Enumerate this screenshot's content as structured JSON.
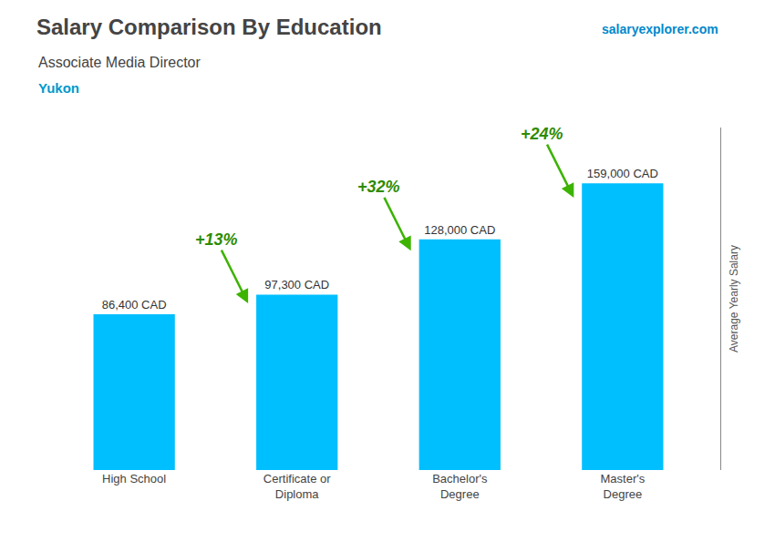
{
  "chart_data": {
    "type": "bar",
    "title": "Salary Comparison By Education",
    "subtitle": [
      "Associate Media Director",
      "Yukon"
    ],
    "ylabel": "Average Yearly Salary",
    "categories": [
      "High School",
      "Certificate or\nDiploma",
      "Bachelor's\nDegree",
      "Master's\nDegree"
    ],
    "values": [
      86400,
      97300,
      128000,
      159000
    ],
    "value_labels": [
      "86,400 CAD",
      "97,300 CAD",
      "128,000 CAD",
      "159,000 CAD"
    ],
    "data_labels": true,
    "color": "#00bfff",
    "ylim": [
      0,
      190000
    ],
    "grid": false,
    "tick_labels": "x",
    "annotations": [
      {
        "text": "+13%",
        "x": "Certificate or\nDiploma"
      },
      {
        "text": "+32%",
        "x": "Bachelor's\nDegree"
      },
      {
        "text": "+24%",
        "x": "Master's\nDegree"
      },
      {
        "text": "salaryexplorer.com"
      }
    ]
  }
}
